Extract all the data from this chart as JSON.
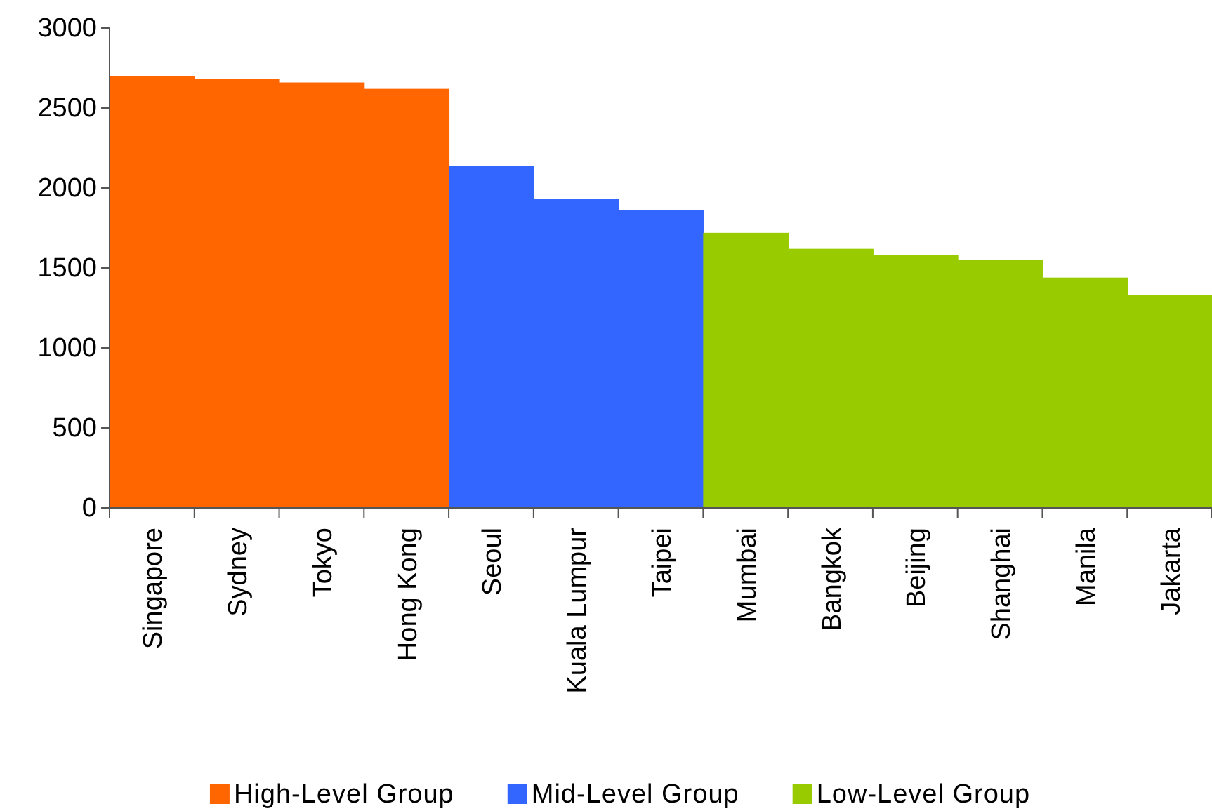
{
  "chart_data": {
    "type": "bar",
    "categories": [
      "Singapore",
      "Sydney",
      "Tokyo",
      "Hong Kong",
      "Seoul",
      "Kuala Lumpur",
      "Taipei",
      "Mumbai",
      "Bangkok",
      "Beijing",
      "Shanghai",
      "Manila",
      "Jakarta"
    ],
    "series": [
      {
        "name": "High-Level Group",
        "color": "#ff6600",
        "values": [
          2700,
          2680,
          2660,
          2620,
          null,
          null,
          null,
          null,
          null,
          null,
          null,
          null,
          null
        ]
      },
      {
        "name": "Mid-Level Group",
        "color": "#3366ff",
        "values": [
          null,
          null,
          null,
          null,
          2140,
          1930,
          1860,
          null,
          null,
          null,
          null,
          null,
          null
        ]
      },
      {
        "name": "Low-Level Group",
        "color": "#99cc00",
        "values": [
          null,
          null,
          null,
          null,
          null,
          null,
          null,
          1720,
          1620,
          1580,
          1550,
          1440,
          1330
        ]
      }
    ],
    "ylim": [
      0,
      3000
    ],
    "yticks": [
      0,
      500,
      1000,
      1500,
      2000,
      2500,
      3000
    ],
    "grid": false,
    "legend": "bottom"
  }
}
